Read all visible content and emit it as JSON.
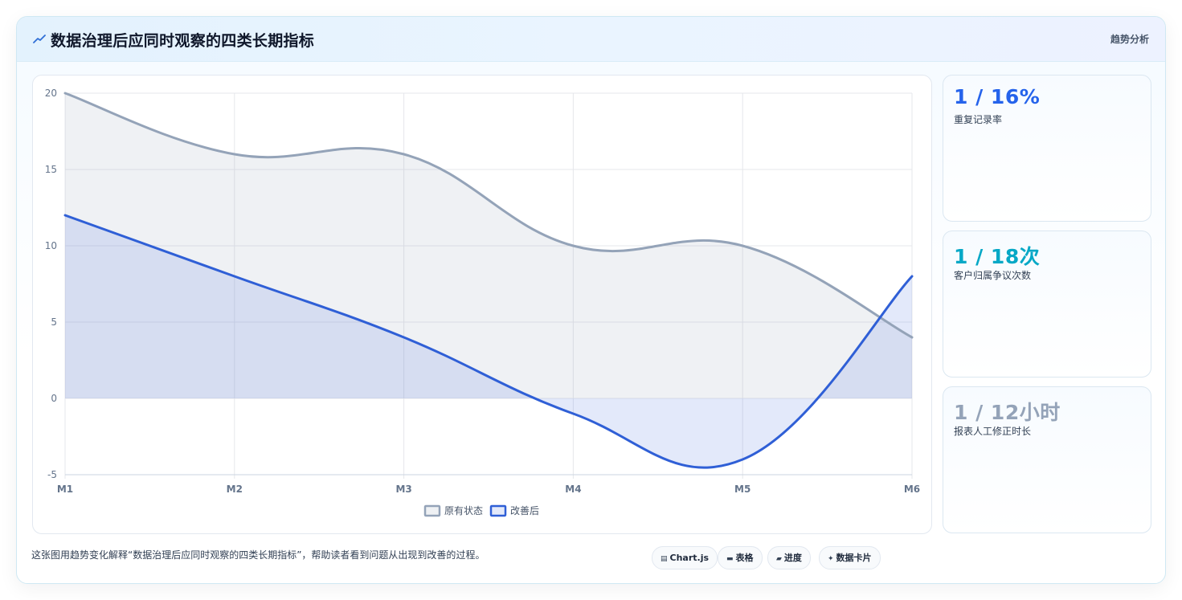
{
  "header": {
    "icon": "sparkline-icon",
    "title": "数据治理后应同时观察的四类长期指标",
    "action_label": "趋势分析"
  },
  "colors": {
    "original": "#94a3b8",
    "improved": "#2f5fd6",
    "metric_1": "#2563eb",
    "metric_2": "#06a8c6",
    "metric_3": "#94a3b8"
  },
  "chart_data": {
    "type": "line",
    "categories": [
      "M1",
      "M2",
      "M3",
      "M4",
      "M5",
      "M6"
    ],
    "series": [
      {
        "name": "原有状态",
        "values": [
          20,
          16,
          16,
          10,
          10,
          4
        ],
        "fill": true
      },
      {
        "name": "改善后",
        "values": [
          12,
          8,
          4,
          -1,
          -4,
          8
        ],
        "fill": true
      }
    ],
    "ylim": [
      -5,
      20
    ],
    "yticks": [
      20,
      15,
      10,
      5,
      0,
      -5
    ],
    "grid": true,
    "smooth": true,
    "legend": "bottom"
  },
  "metrics": [
    {
      "value": "1 / 16%",
      "label": "重复记录率"
    },
    {
      "value": "1 / 18次",
      "label": "客户归属争议次数"
    },
    {
      "value": "1 / 12小时",
      "label": "报表人工修正时长"
    }
  ],
  "footer": {
    "description": "这张图用趋势变化解释“数据治理后应同时观察的四类长期指标”，帮助读者看到问题从出现到改善的过程。",
    "chips": [
      {
        "icon": "chart-icon",
        "label": "Chart.js"
      },
      {
        "icon": "table-icon",
        "label": "表格"
      },
      {
        "icon": "progress-icon",
        "label": "进度"
      },
      {
        "icon": "data-card-icon",
        "label": "数据卡片"
      }
    ]
  }
}
